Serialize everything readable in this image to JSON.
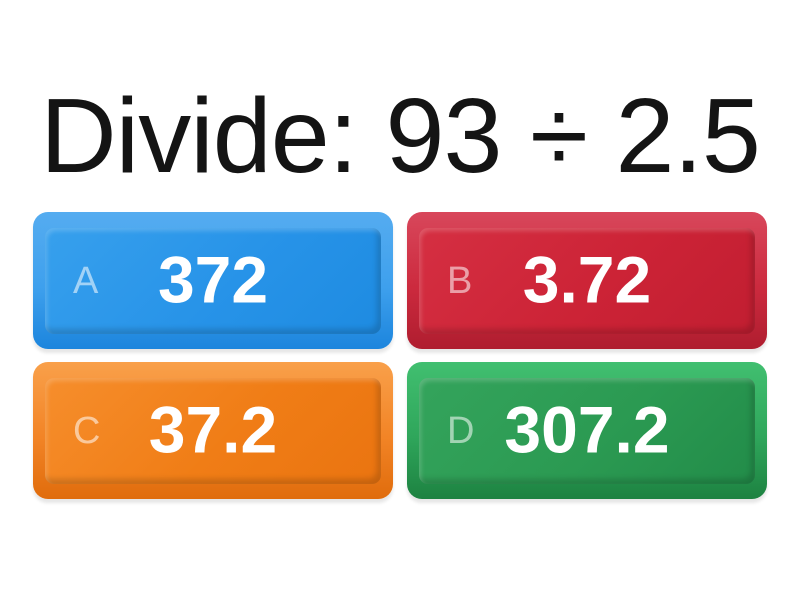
{
  "question": {
    "text": "Divide: 93 ÷ 2.5"
  },
  "answers": [
    {
      "letter": "A",
      "text": "372",
      "color_name": "blue",
      "frame_top": "#55ACF0",
      "frame_bottom": "#1C85DD",
      "face": "#2793E8"
    },
    {
      "letter": "B",
      "text": "3.72",
      "color_name": "red",
      "frame_top": "#D8475B",
      "frame_bottom": "#AF1D2F",
      "face": "#CC2336"
    },
    {
      "letter": "C",
      "text": "37.2",
      "color_name": "orange",
      "frame_top": "#F9A04A",
      "frame_bottom": "#E06C0C",
      "face": "#F07D16"
    },
    {
      "letter": "D",
      "text": "307.2",
      "color_name": "green",
      "frame_top": "#41BF70",
      "frame_bottom": "#1D8241",
      "face": "#2B9A52"
    }
  ],
  "page": {
    "background": "#FFFFFF",
    "title_color": "#141414",
    "answer_text_color": "#FFFFFF",
    "letter_label_color": "rgba(255,255,255,0.55)"
  }
}
